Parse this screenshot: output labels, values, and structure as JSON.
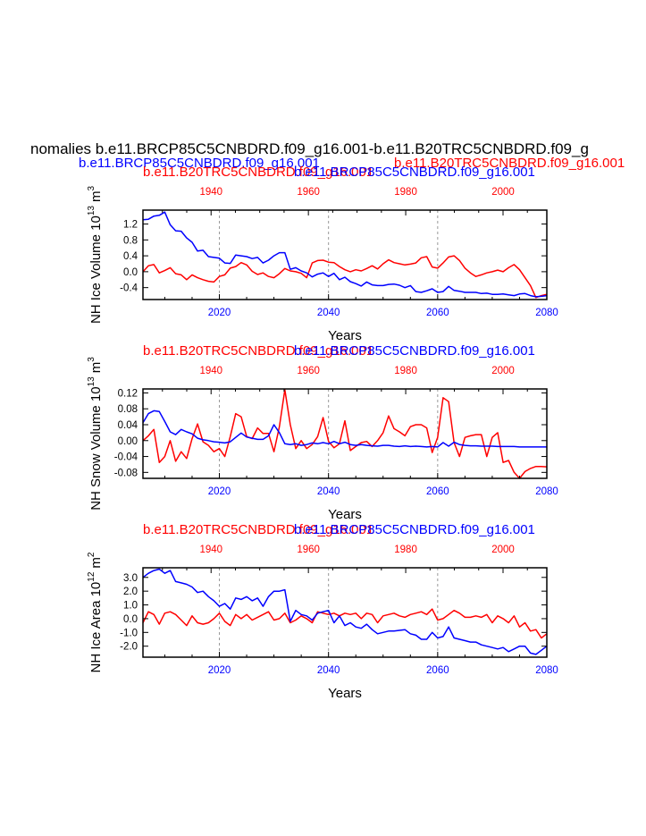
{
  "figure": {
    "main_title": "nomalies b.e11.BRCP85C5CNBDRD.f09_g16.001-b.e11.B20TRC5CNBDRD.f09_g",
    "legend_blue": "b.e11.BRCP85C5CNBDRD.f09_g16.001",
    "legend_red": "b.e11.B20TRC5CNBDRD.f09_g16.001"
  },
  "colors": {
    "blue": "#0000ff",
    "red": "#ff0000",
    "axis": "#000000",
    "grid": "#999999"
  },
  "chart_data": [
    {
      "type": "line",
      "ylabel": "NH Ice Volume 10",
      "ylabel_sup": "13",
      "ylabel_unit": "m",
      "ylabel_unit_sup": "3",
      "xlabel": "Years",
      "top_label_red": "b.e11.B20TRC5CNBDRD.f09_g16.001",
      "top_label_blue": "b.e11.BRCP85C5CNBDRD.f09_g16.001",
      "xlim": [
        2006,
        2080
      ],
      "x_top_lim": [
        1926,
        2009
      ],
      "x_ticks": [
        "2020",
        "2040",
        "2060",
        "2080"
      ],
      "x_top_ticks": [
        "1940",
        "1960",
        "1980",
        "2000"
      ],
      "ylim": [
        -0.7,
        1.55
      ],
      "y_ticks": [
        "1.2",
        "0.8",
        "0.4",
        "0.0",
        "-0.4"
      ],
      "series": [
        {
          "name": "b.e11.BRCP85C5CNBDRD.f09_g16.001",
          "color": "#0000ff",
          "values": [
            1.31,
            1.32,
            1.4,
            1.42,
            1.5,
            1.18,
            1.03,
            1.02,
            0.85,
            0.74,
            0.52,
            0.54,
            0.38,
            0.36,
            0.34,
            0.22,
            0.21,
            0.42,
            0.4,
            0.38,
            0.33,
            0.36,
            0.22,
            0.29,
            0.4,
            0.48,
            0.48,
            0.06,
            0.1,
            0.02,
            -0.03,
            -0.13,
            -0.06,
            -0.03,
            -0.12,
            -0.04,
            -0.2,
            -0.14,
            -0.25,
            -0.3,
            -0.36,
            -0.26,
            -0.33,
            -0.35,
            -0.35,
            -0.32,
            -0.31,
            -0.34,
            -0.4,
            -0.35,
            -0.5,
            -0.52,
            -0.48,
            -0.43,
            -0.52,
            -0.5,
            -0.37,
            -0.47,
            -0.49,
            -0.52,
            -0.52,
            -0.52,
            -0.55,
            -0.54,
            -0.57,
            -0.57,
            -0.56,
            -0.58,
            -0.6,
            -0.56,
            -0.55,
            -0.6,
            -0.63,
            -0.62,
            -0.6
          ]
        },
        {
          "name": "b.e11.B20TRC5CNBDRD.f09_g16.001",
          "color": "#ff0000",
          "values": [
            0.0,
            0.15,
            0.18,
            -0.03,
            0.03,
            0.1,
            -0.05,
            -0.08,
            -0.2,
            -0.08,
            -0.15,
            -0.2,
            -0.24,
            -0.26,
            -0.12,
            -0.08,
            0.09,
            0.13,
            0.23,
            0.17,
            0.01,
            -0.07,
            -0.03,
            -0.12,
            -0.15,
            -0.05,
            0.08,
            0.02,
            0.0,
            -0.04,
            -0.15,
            0.22,
            0.28,
            0.29,
            0.24,
            0.23,
            0.13,
            0.05,
            0.0,
            0.05,
            0.02,
            0.08,
            0.15,
            0.07,
            0.2,
            0.3,
            0.23,
            0.2,
            0.17,
            0.19,
            0.22,
            0.35,
            0.38,
            0.12,
            0.09,
            0.22,
            0.37,
            0.4,
            0.28,
            0.09,
            -0.03,
            -0.12,
            -0.08,
            -0.03,
            0.0,
            0.04,
            0.0,
            0.1,
            0.18,
            0.05,
            -0.15,
            -0.35,
            -0.65,
            -0.6,
            -0.57
          ]
        }
      ]
    },
    {
      "type": "line",
      "ylabel": "NH Snow Volume 10",
      "ylabel_sup": "13",
      "ylabel_unit": "m",
      "ylabel_unit_sup": "3",
      "xlabel": "Years",
      "top_label_red": "b.e11.B20TRC5CNBDRD.f09_g16.001",
      "top_label_blue": "b.e11.BRCP85C5CNBDRD.f09_g16.001",
      "xlim": [
        2006,
        2080
      ],
      "x_top_lim": [
        1926,
        2009
      ],
      "x_ticks": [
        "2020",
        "2040",
        "2060",
        "2080"
      ],
      "x_top_ticks": [
        "1940",
        "1960",
        "1980",
        "2000"
      ],
      "ylim": [
        -0.095,
        0.13
      ],
      "y_ticks": [
        "0.12",
        "0.08",
        "0.04",
        "0.00",
        "-0.04",
        "-0.08"
      ],
      "series": [
        {
          "name": "b.e11.BRCP85C5CNBDRD.f09_g16.001",
          "color": "#0000ff",
          "values": [
            0.045,
            0.068,
            0.075,
            0.073,
            0.048,
            0.022,
            0.015,
            0.028,
            0.022,
            0.017,
            0.006,
            0.002,
            0.0,
            -0.003,
            -0.004,
            -0.006,
            -0.003,
            0.008,
            0.019,
            0.009,
            0.006,
            0.003,
            0.003,
            0.012,
            0.04,
            0.02,
            -0.008,
            -0.01,
            -0.008,
            -0.012,
            -0.01,
            -0.006,
            -0.008,
            -0.005,
            -0.008,
            -0.002,
            -0.008,
            -0.004,
            -0.01,
            -0.012,
            -0.01,
            -0.012,
            -0.013,
            -0.014,
            -0.012,
            -0.012,
            -0.014,
            -0.015,
            -0.013,
            -0.015,
            -0.014,
            -0.015,
            -0.016,
            -0.015,
            -0.016,
            -0.005,
            -0.014,
            -0.004,
            -0.01,
            -0.012,
            -0.013,
            -0.013,
            -0.014,
            -0.014,
            -0.014,
            -0.015,
            -0.015,
            -0.015,
            -0.015,
            -0.016,
            -0.016,
            -0.016,
            -0.016,
            -0.016,
            -0.016
          ]
        },
        {
          "name": "b.e11.B20TRC5CNBDRD.f09_g16.001",
          "color": "#ff0000",
          "values": [
            0.0,
            0.012,
            0.028,
            -0.055,
            -0.04,
            0.0,
            -0.052,
            -0.028,
            -0.045,
            0.005,
            0.042,
            -0.003,
            -0.012,
            -0.028,
            -0.02,
            -0.04,
            0.01,
            0.068,
            0.06,
            0.01,
            0.005,
            0.032,
            0.018,
            0.018,
            -0.028,
            0.035,
            0.128,
            0.04,
            -0.02,
            0.0,
            -0.02,
            -0.01,
            0.01,
            0.058,
            -0.002,
            -0.018,
            -0.008,
            0.05,
            -0.025,
            -0.015,
            -0.005,
            -0.002,
            -0.015,
            0.0,
            0.02,
            0.062,
            0.03,
            0.022,
            0.012,
            0.035,
            0.04,
            0.04,
            0.032,
            -0.03,
            0.008,
            0.108,
            0.098,
            -0.005,
            -0.04,
            0.008,
            0.012,
            0.015,
            0.015,
            -0.04,
            0.008,
            0.02,
            -0.055,
            -0.05,
            -0.08,
            -0.095,
            -0.078,
            -0.07,
            -0.065,
            -0.065,
            -0.066
          ]
        }
      ]
    },
    {
      "type": "line",
      "ylabel": "NH Ice Area 10",
      "ylabel_sup": "12",
      "ylabel_unit": "m",
      "ylabel_unit_sup": "2",
      "xlabel": "Years",
      "top_label_red": "b.e11.B20TRC5CNBDRD.f09_g16.001",
      "top_label_blue": "b.e11.BRCP85C5CNBDRD.f09_g16.001",
      "xlim": [
        2006,
        2080
      ],
      "x_top_lim": [
        1926,
        2009
      ],
      "x_ticks": [
        "2020",
        "2040",
        "2060",
        "2080"
      ],
      "x_top_ticks": [
        "1940",
        "1960",
        "1980",
        "2000"
      ],
      "ylim": [
        -2.8,
        3.7
      ],
      "y_ticks": [
        "3.0",
        "2.0",
        "1.0",
        "0.0",
        "-1.0",
        "-2.0"
      ],
      "series": [
        {
          "name": "b.e11.BRCP85C5CNBDRD.f09_g16.001",
          "color": "#0000ff",
          "values": [
            3.0,
            3.3,
            3.5,
            3.6,
            3.3,
            3.5,
            2.7,
            2.6,
            2.5,
            2.3,
            1.9,
            2.0,
            1.6,
            1.3,
            0.9,
            1.1,
            0.7,
            1.5,
            1.4,
            1.6,
            1.3,
            1.5,
            0.9,
            1.6,
            2.0,
            2.0,
            2.1,
            -0.2,
            0.6,
            0.3,
            0.2,
            -0.1,
            0.4,
            0.5,
            0.6,
            -0.3,
            0.2,
            -0.5,
            -0.3,
            -0.6,
            -0.7,
            -0.4,
            -0.8,
            -1.1,
            -1.0,
            -0.9,
            -0.9,
            -0.85,
            -0.8,
            -1.1,
            -1.2,
            -1.5,
            -1.5,
            -1.0,
            -1.4,
            -1.3,
            -0.6,
            -1.4,
            -1.5,
            -1.6,
            -1.7,
            -1.7,
            -1.9,
            -2.0,
            -2.1,
            -2.2,
            -2.1,
            -2.4,
            -2.2,
            -2.0,
            -2.0,
            -2.5,
            -2.6,
            -2.3,
            -2.0
          ]
        },
        {
          "name": "b.e11.B20TRC5CNBDRD.f09_g16.001",
          "color": "#ff0000",
          "values": [
            -0.3,
            0.5,
            0.3,
            -0.4,
            0.4,
            0.5,
            0.3,
            -0.1,
            -0.5,
            0.2,
            -0.3,
            -0.4,
            -0.3,
            0.0,
            0.4,
            -0.2,
            -0.5,
            0.3,
            0.0,
            0.3,
            -0.1,
            0.1,
            0.3,
            0.5,
            -0.1,
            0.0,
            0.4,
            -0.3,
            -0.1,
            0.2,
            0.0,
            -0.3,
            0.5,
            0.4,
            0.3,
            0.4,
            0.2,
            0.4,
            0.3,
            0.4,
            0.0,
            0.4,
            0.3,
            -0.3,
            0.2,
            0.3,
            0.4,
            0.2,
            0.1,
            0.3,
            0.4,
            0.5,
            0.3,
            0.7,
            -0.1,
            0.0,
            0.3,
            0.6,
            0.4,
            0.1,
            0.1,
            0.2,
            0.1,
            0.3,
            -0.3,
            0.2,
            0.0,
            -0.3,
            0.2,
            -0.6,
            -0.3,
            -0.9,
            -0.8,
            -1.4,
            -1.1
          ]
        }
      ]
    }
  ]
}
